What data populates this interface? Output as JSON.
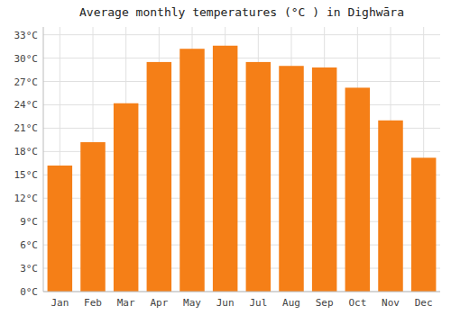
{
  "chart_data": {
    "type": "bar",
    "title": "Average monthly temperatures (°C ) in Dighwāra",
    "categories": [
      "Jan",
      "Feb",
      "Mar",
      "Apr",
      "May",
      "Jun",
      "Jul",
      "Aug",
      "Sep",
      "Oct",
      "Nov",
      "Dec"
    ],
    "values": [
      16.2,
      19.2,
      24.2,
      29.5,
      31.2,
      31.6,
      29.5,
      29.0,
      28.8,
      26.2,
      22.0,
      17.2
    ],
    "color": "#F57F17",
    "ylim": [
      0,
      34
    ],
    "yticks": [
      {
        "value": 0,
        "label": "0°C"
      },
      {
        "value": 3,
        "label": "3°C"
      },
      {
        "value": 6,
        "label": "6°C"
      },
      {
        "value": 9,
        "label": "9°C"
      },
      {
        "value": 12,
        "label": "12°C"
      },
      {
        "value": 15,
        "label": "15°C"
      },
      {
        "value": 18,
        "label": "18°C"
      },
      {
        "value": 21,
        "label": "21°C"
      },
      {
        "value": 24,
        "label": "24°C"
      },
      {
        "value": 27,
        "label": "27°C"
      },
      {
        "value": 30,
        "label": "30°C"
      },
      {
        "value": 33,
        "label": "33°C"
      }
    ],
    "grid": true
  }
}
